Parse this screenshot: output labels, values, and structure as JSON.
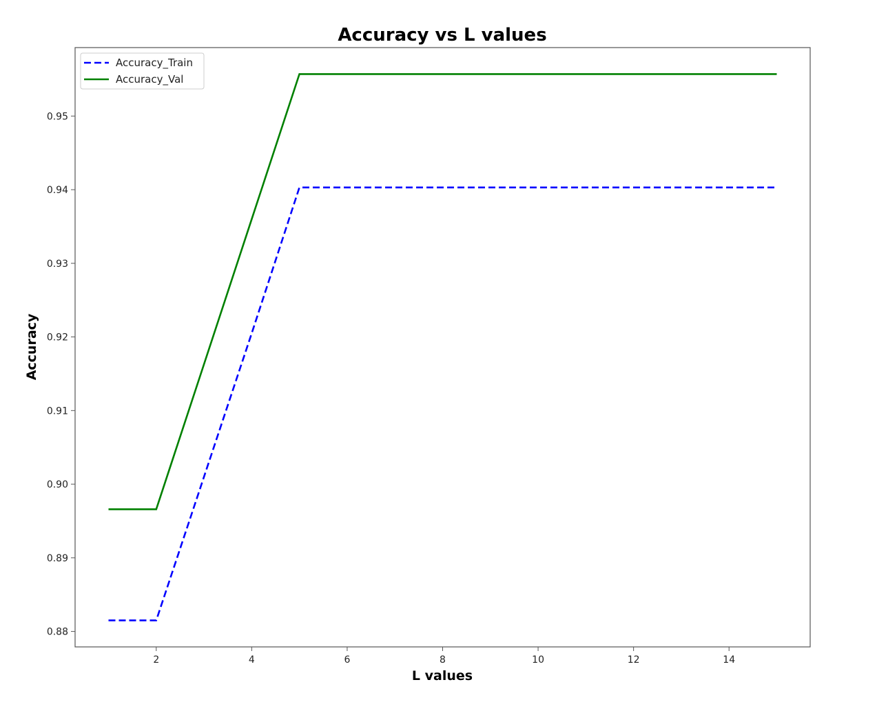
{
  "chart_data": {
    "type": "line",
    "title": "Accuracy vs L values",
    "xlabel": "L values",
    "ylabel": "Accuracy",
    "xlim": [
      0.3,
      15.7
    ],
    "ylim": [
      0.8779,
      0.9593
    ],
    "xticks": [
      2,
      4,
      6,
      8,
      10,
      12,
      14
    ],
    "xtick_labels": [
      "2",
      "4",
      "6",
      "8",
      "10",
      "12",
      "14"
    ],
    "yticks": [
      0.88,
      0.89,
      0.9,
      0.91,
      0.92,
      0.93,
      0.94,
      0.95
    ],
    "ytick_labels": [
      "0.88",
      "0.89",
      "0.90",
      "0.91",
      "0.92",
      "0.93",
      "0.94",
      "0.95"
    ],
    "grid": false,
    "legend_position": "top-left",
    "x": [
      1,
      2,
      3,
      4,
      5,
      6,
      7,
      8,
      9,
      10,
      11,
      12,
      13,
      14,
      15
    ],
    "series": [
      {
        "name": "Accuracy_Train",
        "color": "#0000ff",
        "style": "dashed",
        "values": [
          0.8815,
          0.8815,
          0.901,
          0.9205,
          0.9403,
          0.9403,
          0.9403,
          0.9403,
          0.9403,
          0.9403,
          0.9403,
          0.9403,
          0.9403,
          0.9403,
          0.9403
        ]
      },
      {
        "name": "Accuracy_Val",
        "color": "#008000",
        "style": "solid",
        "values": [
          0.8966,
          0.8966,
          0.9163,
          0.936,
          0.9557,
          0.9557,
          0.9557,
          0.9557,
          0.9557,
          0.9557,
          0.9557,
          0.9557,
          0.9557,
          0.9557,
          0.9557
        ]
      }
    ]
  }
}
